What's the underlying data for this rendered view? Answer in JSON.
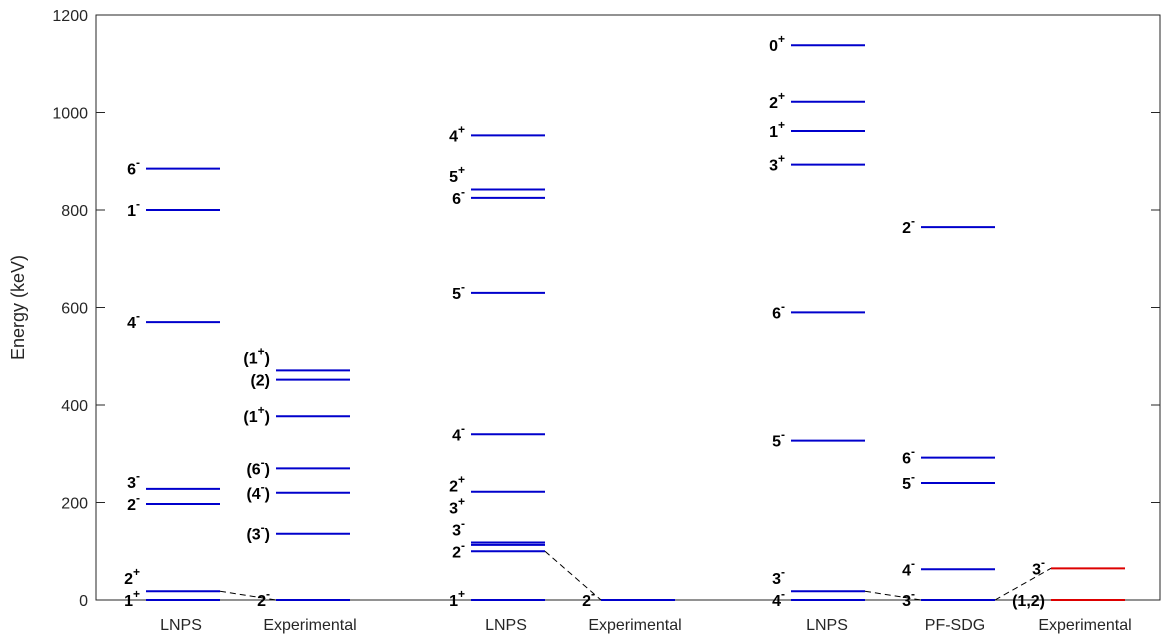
{
  "chart_data": {
    "type": "level_scheme",
    "ylabel": "Energy (keV)",
    "ylim": [
      0,
      1200
    ],
    "yticks": [
      0,
      200,
      400,
      600,
      800,
      1000,
      1200
    ],
    "grid": false,
    "columns": [
      {
        "label": "LNPS",
        "color": "#0000cc",
        "levels": [
          {
            "energy": 0,
            "spin": "1",
            "parity": "+"
          },
          {
            "energy": 18,
            "spin": "2",
            "parity": "+"
          },
          {
            "energy": 197,
            "spin": "2",
            "parity": "-"
          },
          {
            "energy": 228,
            "spin": "3",
            "parity": "-"
          },
          {
            "energy": 570,
            "spin": "4",
            "parity": "-"
          },
          {
            "energy": 800,
            "spin": "1",
            "parity": "-"
          },
          {
            "energy": 885,
            "spin": "6",
            "parity": "-"
          }
        ]
      },
      {
        "label": "Experimental",
        "color": "#0000cc",
        "levels": [
          {
            "energy": 0,
            "spin": "2",
            "parity": "-",
            "pre": "",
            "post": ""
          },
          {
            "energy": 136,
            "spin": "3",
            "parity": "-",
            "pre": "(",
            "post": ")"
          },
          {
            "energy": 220,
            "spin": "4",
            "parity": "-",
            "pre": "(",
            "post": ")"
          },
          {
            "energy": 270,
            "spin": "6",
            "parity": "-",
            "pre": "(",
            "post": ")"
          },
          {
            "energy": 377,
            "spin": "1",
            "parity": "+",
            "pre": "(",
            "post": ")"
          },
          {
            "energy": 452,
            "spin": "2",
            "parity": "",
            "pre": "(",
            "post": ")"
          },
          {
            "energy": 471,
            "spin": "1",
            "parity": "+",
            "pre": "(",
            "post": ")"
          }
        ]
      },
      {
        "label": "LNPS",
        "color": "#0000cc",
        "levels": [
          {
            "energy": 0,
            "spin": "1",
            "parity": "+"
          },
          {
            "energy": 100,
            "spin": "2",
            "parity": "-"
          },
          {
            "energy": 113,
            "spin": "3",
            "parity": "-"
          },
          {
            "energy": 118,
            "spin": "3",
            "parity": "+"
          },
          {
            "energy": 222,
            "spin": "2",
            "parity": "+"
          },
          {
            "energy": 340,
            "spin": "4",
            "parity": "-"
          },
          {
            "energy": 630,
            "spin": "5",
            "parity": "-"
          },
          {
            "energy": 825,
            "spin": "6",
            "parity": "-"
          },
          {
            "energy": 842,
            "spin": "5",
            "parity": "+"
          },
          {
            "energy": 953,
            "spin": "4",
            "parity": "+"
          }
        ]
      },
      {
        "label": "Experimental",
        "color": "#0000cc",
        "levels": [
          {
            "energy": 0,
            "spin": "2",
            "parity": "-"
          }
        ]
      },
      {
        "label": "LNPS",
        "color": "#0000cc",
        "levels": [
          {
            "energy": 0,
            "spin": "4",
            "parity": "-"
          },
          {
            "energy": 18,
            "spin": "3",
            "parity": "-"
          },
          {
            "energy": 327,
            "spin": "5",
            "parity": "-"
          },
          {
            "energy": 590,
            "spin": "6",
            "parity": "-"
          },
          {
            "energy": 893,
            "spin": "3",
            "parity": "+"
          },
          {
            "energy": 962,
            "spin": "1",
            "parity": "+"
          },
          {
            "energy": 1022,
            "spin": "2",
            "parity": "+"
          },
          {
            "energy": 1138,
            "spin": "0",
            "parity": "+"
          }
        ]
      },
      {
        "label": "PF-SDG",
        "color": "#0000cc",
        "levels": [
          {
            "energy": 0,
            "spin": "3",
            "parity": "-"
          },
          {
            "energy": 63,
            "spin": "4",
            "parity": "-"
          },
          {
            "energy": 240,
            "spin": "5",
            "parity": "-"
          },
          {
            "energy": 292,
            "spin": "6",
            "parity": "-"
          },
          {
            "energy": 765,
            "spin": "2",
            "parity": "-"
          }
        ]
      },
      {
        "label": "Experimental",
        "color": "#dd0000",
        "levels": [
          {
            "energy": 0,
            "spin": "1,2",
            "parity": "",
            "pre": "(",
            "post": ")"
          },
          {
            "energy": 65,
            "spin": "3",
            "parity": "-"
          }
        ]
      }
    ]
  }
}
